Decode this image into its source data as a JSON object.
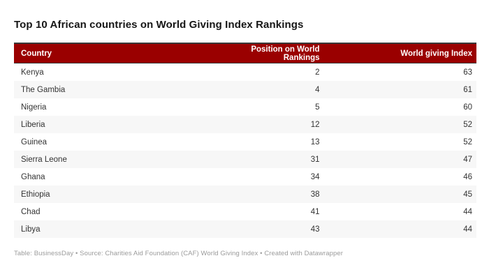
{
  "chart_data": {
    "type": "table",
    "title": "Top 10 African countries on World Giving Index Rankings",
    "columns": [
      "Country",
      "Position on World Rankings",
      "World giving Index"
    ],
    "rows": [
      [
        "Kenya",
        2,
        63
      ],
      [
        "The Gambia",
        4,
        61
      ],
      [
        "Nigeria",
        5,
        60
      ],
      [
        "Liberia",
        12,
        52
      ],
      [
        "Guinea",
        13,
        52
      ],
      [
        "Sierra Leone",
        31,
        47
      ],
      [
        "Ghana",
        34,
        46
      ],
      [
        "Ethiopia",
        38,
        45
      ],
      [
        "Chad",
        41,
        44
      ],
      [
        "Libya",
        43,
        44
      ]
    ],
    "layout_hints": {
      "header_alignment": [
        "left",
        "right",
        "right"
      ],
      "alternating_rows": true,
      "first_row_background": "white"
    },
    "footer": "Table: BusinessDay • Source: Charities Aid Foundation (CAF) World Giving Index • Created with Datawrapper"
  },
  "colors": {
    "header_bg": "#9a0000",
    "header_text": "#ffffff",
    "row_alt_bg": "#f7f7f7",
    "border_dark": "#393939",
    "body_text": "#333333",
    "footer_text": "#9b9b9b",
    "title_text": "#161616"
  }
}
